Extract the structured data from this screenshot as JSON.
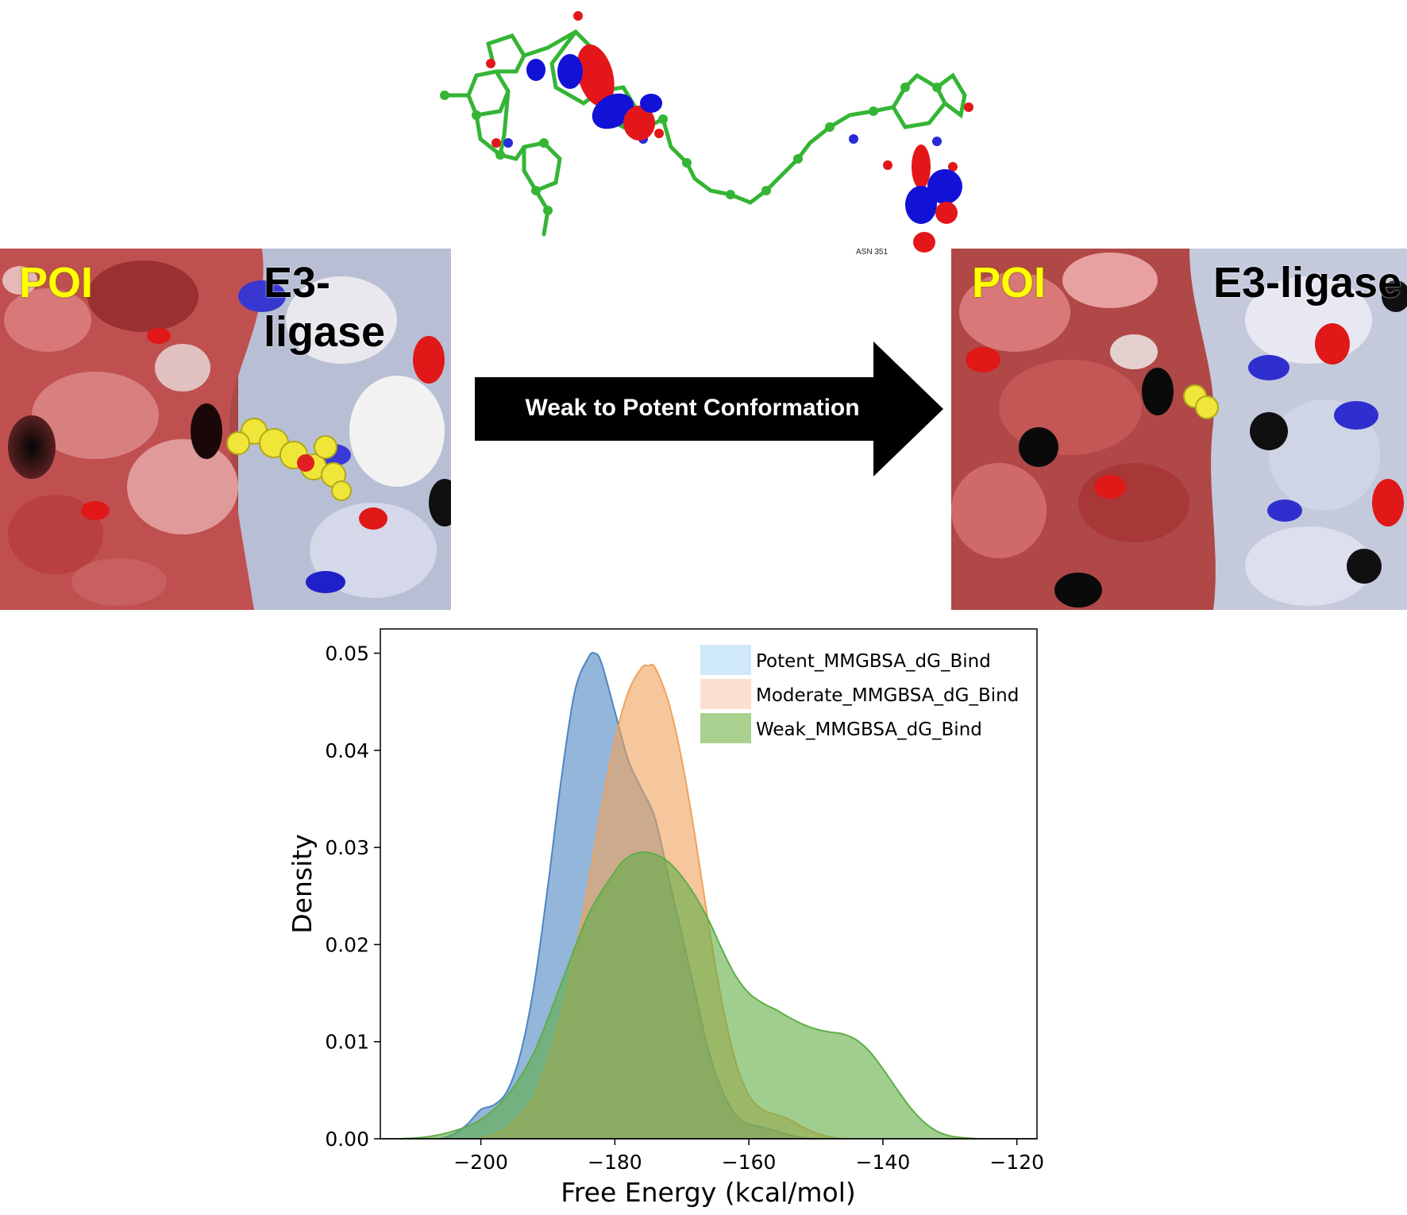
{
  "figure": {
    "poi_label": "POI",
    "e3_label": "E3-ligase",
    "arrow_label": "Weak to Potent Conformation",
    "residue_label": "ASN 351"
  },
  "colors": {
    "potent": "#4c86c1",
    "moderate": "#f0a25c",
    "weak": "#5fae45",
    "potent_legend": "#cfe8fa",
    "moderate_legend": "#fbe0d2",
    "weak_legend": "#a9d08e"
  },
  "chart_data": {
    "type": "area",
    "subtype": "kde-density",
    "xlabel": "Free Energy (kcal/mol)",
    "ylabel": "Density",
    "xlim": [
      -215,
      -117
    ],
    "ylim": [
      0,
      0.0525
    ],
    "xticks": [
      -200,
      -180,
      -160,
      -140,
      -120
    ],
    "yticks": [
      0.0,
      0.01,
      0.02,
      0.03,
      0.04,
      0.05
    ],
    "xtick_labels": [
      "−200",
      "−180",
      "−160",
      "−140",
      "−120"
    ],
    "ytick_labels": [
      "0.00",
      "0.01",
      "0.02",
      "0.03",
      "0.04",
      "0.05"
    ],
    "legend_position": "top-right",
    "series": [
      {
        "name": "Potent_MMGBSA_dG_Bind",
        "color": "#4c86c1",
        "legend_color": "#cfe8fa",
        "x": [
          -206,
          -204,
          -202,
          -200,
          -198,
          -196,
          -194,
          -192,
          -190,
          -188,
          -186,
          -184,
          -183,
          -182,
          -180,
          -178,
          -176,
          -174,
          -172,
          -170,
          -168,
          -166,
          -164,
          -162,
          -160,
          -158,
          -156,
          -154,
          -152,
          -150
        ],
        "y": [
          0.0,
          0.0005,
          0.0015,
          0.003,
          0.0035,
          0.005,
          0.009,
          0.016,
          0.026,
          0.037,
          0.046,
          0.0495,
          0.05,
          0.049,
          0.044,
          0.039,
          0.036,
          0.033,
          0.027,
          0.021,
          0.015,
          0.009,
          0.005,
          0.0025,
          0.0015,
          0.0012,
          0.0008,
          0.0004,
          0.0001,
          0.0
        ]
      },
      {
        "name": "Moderate_MMGBSA_dG_Bind",
        "color": "#f0a25c",
        "legend_color": "#fbe0d2",
        "x": [
          -200,
          -198,
          -196,
          -194,
          -192,
          -190,
          -188,
          -186,
          -184,
          -182,
          -180,
          -178,
          -176,
          -175,
          -174,
          -172,
          -170,
          -168,
          -166,
          -164,
          -162,
          -160,
          -158,
          -156,
          -154,
          -152,
          -150,
          -148,
          -146
        ],
        "y": [
          0.0,
          0.0005,
          0.0012,
          0.0025,
          0.0045,
          0.008,
          0.013,
          0.019,
          0.026,
          0.034,
          0.041,
          0.046,
          0.0485,
          0.0487,
          0.0485,
          0.045,
          0.039,
          0.031,
          0.022,
          0.014,
          0.008,
          0.0045,
          0.003,
          0.0025,
          0.002,
          0.0012,
          0.0006,
          0.0002,
          0.0
        ]
      },
      {
        "name": "Weak_MMGBSA_dG_Bind",
        "color": "#5fae45",
        "legend_color": "#a9d08e",
        "x": [
          -212,
          -208,
          -204,
          -200,
          -196,
          -192,
          -188,
          -184,
          -180,
          -178,
          -176,
          -174,
          -172,
          -170,
          -168,
          -166,
          -164,
          -162,
          -160,
          -158,
          -156,
          -154,
          -152,
          -150,
          -148,
          -146,
          -144,
          -142,
          -140,
          -138,
          -136,
          -134,
          -132,
          -130,
          -128,
          -126
        ],
        "y": [
          0.0,
          0.0002,
          0.0008,
          0.002,
          0.0045,
          0.009,
          0.016,
          0.023,
          0.0275,
          0.029,
          0.0295,
          0.0293,
          0.0285,
          0.027,
          0.025,
          0.0225,
          0.0195,
          0.0168,
          0.015,
          0.014,
          0.0133,
          0.0125,
          0.0118,
          0.0113,
          0.011,
          0.0108,
          0.0102,
          0.009,
          0.0072,
          0.0052,
          0.0033,
          0.0018,
          0.0008,
          0.0003,
          0.0001,
          0.0
        ]
      }
    ]
  }
}
